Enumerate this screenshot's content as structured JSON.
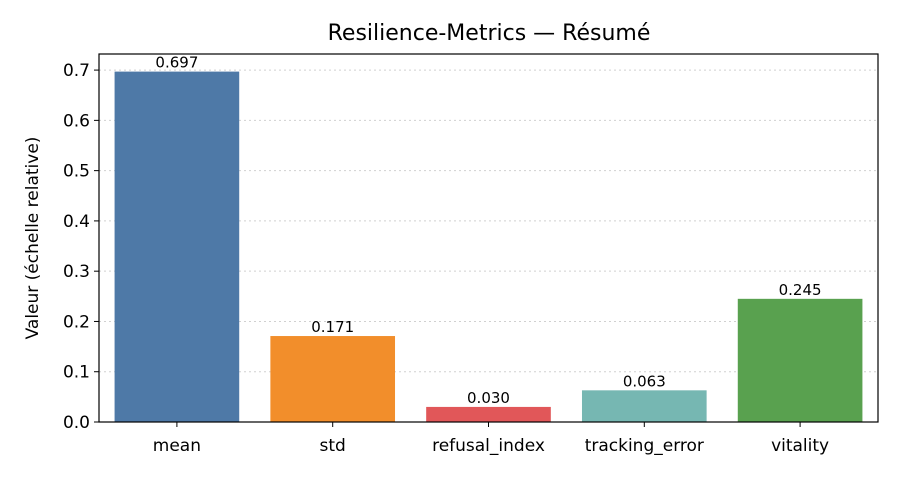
{
  "chart_data": {
    "type": "bar",
    "title": "Resilience-Metrics — Résumé",
    "xlabel": "",
    "ylabel": "Valeur (échelle relative)",
    "categories": [
      "mean",
      "std",
      "refusal_index",
      "tracking_error",
      "vitality"
    ],
    "values": [
      0.697,
      0.171,
      0.03,
      0.063,
      0.245
    ],
    "value_labels": [
      "0.697",
      "0.171",
      "0.030",
      "0.063",
      "0.245"
    ],
    "colors": [
      "#4e79a7",
      "#f28e2b",
      "#e15759",
      "#76b7b2",
      "#59a14f"
    ],
    "ylim": [
      0,
      0.732
    ],
    "yticks": [
      0.0,
      0.1,
      0.2,
      0.3,
      0.4,
      0.5,
      0.6,
      0.7
    ],
    "ytick_labels": [
      "0.0",
      "0.1",
      "0.2",
      "0.3",
      "0.4",
      "0.5",
      "0.6",
      "0.7"
    ],
    "grid": "y-dotted",
    "legend": "none"
  }
}
